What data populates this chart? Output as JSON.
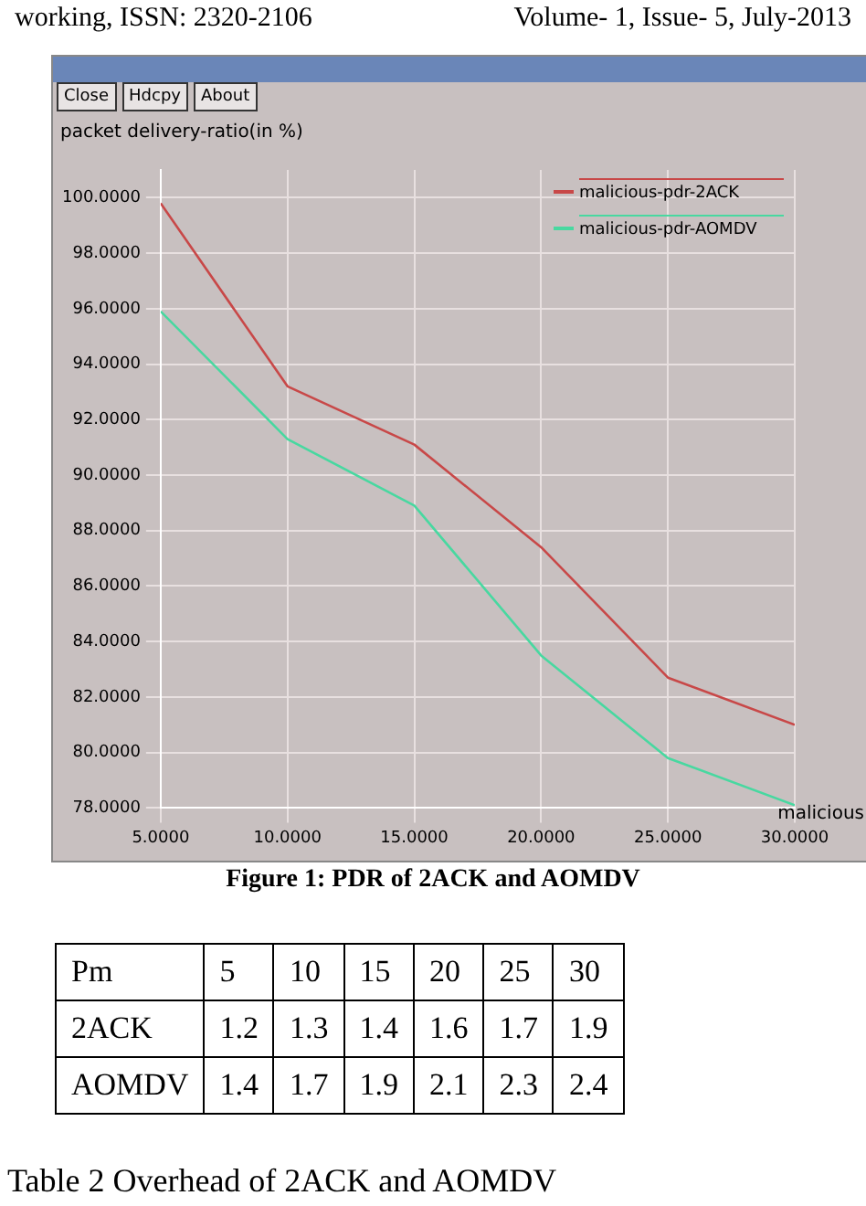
{
  "chart_data": [
    {
      "type": "line",
      "title": "Figure 1: PDR of 2ACK and AOMDV",
      "ylabel": "packet delivery-ratio(in %)",
      "xlabel": "malicious",
      "annotations": [
        "working, ISSN: 2320-2106",
        "Volume- 1, Issue- 5, July-2013",
        "Close",
        "Hdcpy",
        "About"
      ],
      "x": [
        5,
        10,
        15,
        20,
        25,
        30
      ],
      "series": [
        {
          "name": "malicious-pdr-2ACK",
          "color": "#c84848",
          "values": [
            99.8,
            93.2,
            91.1,
            87.4,
            82.7,
            81.0
          ]
        },
        {
          "name": "malicious-pdr-AOMDV",
          "color": "#48d8a0",
          "values": [
            95.9,
            91.3,
            88.9,
            83.5,
            79.8,
            78.1
          ]
        }
      ],
      "xlim": [
        5,
        30
      ],
      "ylim": [
        78,
        101
      ],
      "xticks": [
        {
          "value": 5,
          "label": "5.0000"
        },
        {
          "value": 10,
          "label": "10.0000"
        },
        {
          "value": 15,
          "label": "15.0000"
        },
        {
          "value": 20,
          "label": "20.0000"
        },
        {
          "value": 25,
          "label": "25.0000"
        },
        {
          "value": 30,
          "label": "30.0000"
        }
      ],
      "yticks": [
        {
          "value": 78,
          "label": "78.0000"
        },
        {
          "value": 80,
          "label": "80.0000"
        },
        {
          "value": 82,
          "label": "82.0000"
        },
        {
          "value": 84,
          "label": "84.0000"
        },
        {
          "value": 86,
          "label": "86.0000"
        },
        {
          "value": 88,
          "label": "88.0000"
        },
        {
          "value": 90,
          "label": "90.0000"
        },
        {
          "value": 92,
          "label": "92.0000"
        },
        {
          "value": 94,
          "label": "94.0000"
        },
        {
          "value": 96,
          "label": "96.0000"
        },
        {
          "value": 98,
          "label": "98.0000"
        },
        {
          "value": 100,
          "label": "100.0000"
        }
      ],
      "grid": true,
      "legend": "top right",
      "marker": "none",
      "line_style": "solid"
    },
    {
      "type": "heatmap",
      "title": "Table 2 Overhead of 2ACK and AOMDV",
      "xlabel": "Pm",
      "categories": [
        "5",
        "10",
        "15",
        "20",
        "25",
        "30"
      ],
      "y_categories": [
        "2ACK",
        "AOMDV"
      ],
      "cells": [
        [
          1.2,
          1.3,
          1.4,
          1.6,
          1.7,
          1.9
        ],
        [
          1.4,
          1.7,
          1.9,
          2.1,
          2.3,
          2.4
        ]
      ],
      "data_labels": true
    }
  ]
}
